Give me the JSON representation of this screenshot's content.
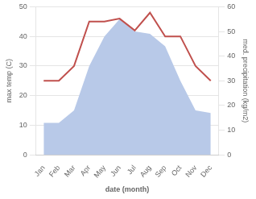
{
  "chart_data": {
    "type": "line",
    "xlabel": "date (month)",
    "ylabel": "max temp (C)",
    "y2label": "med. precipitation (kg/m2)",
    "categories": [
      "Jan",
      "Feb",
      "Mar",
      "Apr",
      "May",
      "Jun",
      "Jul",
      "Aug",
      "Sep",
      "Oct",
      "Nov",
      "Dec"
    ],
    "series": [
      {
        "type": "area",
        "color": "#b8c9e8",
        "axis": "y2",
        "values": [
          13,
          13,
          18,
          36,
          48,
          55,
          50,
          49,
          44,
          30,
          18,
          17
        ]
      },
      {
        "type": "line",
        "color": "#c0504d",
        "values": [
          25,
          25,
          30,
          45,
          45,
          46,
          42,
          48,
          40,
          40,
          30,
          25
        ]
      }
    ],
    "ylim": [
      0,
      50
    ],
    "yticks": [
      0,
      10,
      20,
      30,
      40,
      50
    ],
    "y2lim": [
      0,
      60
    ],
    "y2ticks": [
      0,
      10,
      20,
      30,
      40,
      50,
      60
    ],
    "grid": true
  }
}
